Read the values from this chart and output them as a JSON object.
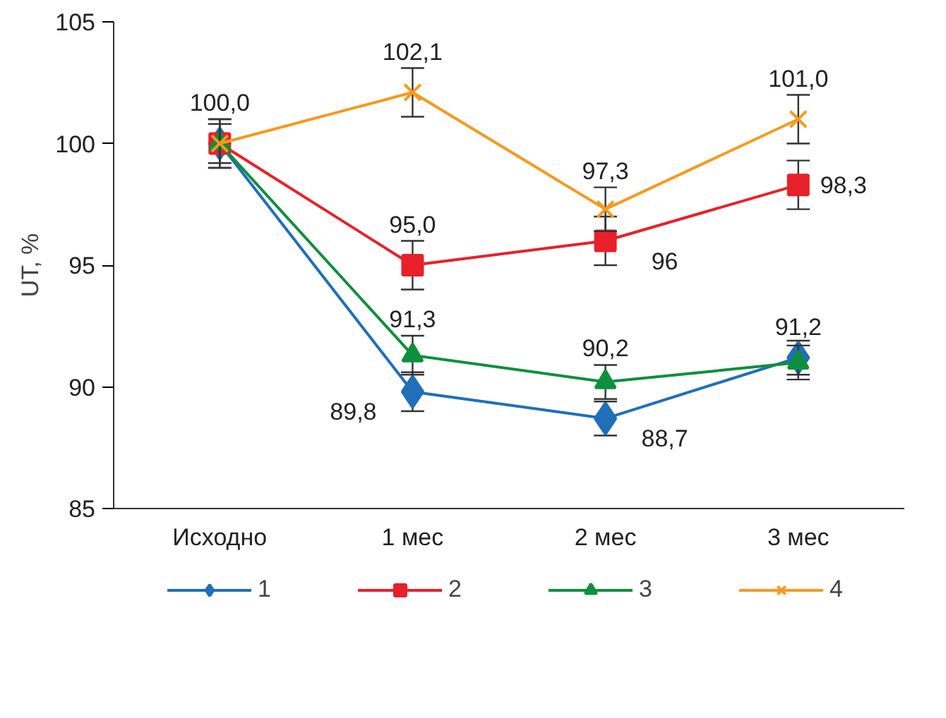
{
  "chart_data": {
    "type": "line",
    "ylabel": "UT, %",
    "categories": [
      "Исходно",
      "1 мес",
      "2 мес",
      "3 мес"
    ],
    "ylim": [
      85,
      105
    ],
    "yticks": [
      85,
      90,
      95,
      100,
      105
    ],
    "grid": false,
    "legend": "bottom",
    "series": [
      {
        "name": "1",
        "color": "#1f6fb9",
        "marker": "diamond",
        "values": [
          100.0,
          89.8,
          88.7,
          91.2
        ],
        "errors": [
          0.8,
          0.8,
          0.7,
          0.7
        ],
        "value_labels": [
          null,
          "89,8",
          "88,7",
          "91,2"
        ]
      },
      {
        "name": "2",
        "color": "#e8202a",
        "marker": "square",
        "values": [
          100.0,
          95.0,
          96.0,
          98.3
        ],
        "errors": [
          1.0,
          1.0,
          1.0,
          1.0
        ],
        "value_labels": [
          null,
          "95,0",
          "96",
          "98,3"
        ]
      },
      {
        "name": "3",
        "color": "#0e8f3e",
        "marker": "triangle",
        "values": [
          100.0,
          91.3,
          90.2,
          91.0
        ],
        "errors": [
          0.8,
          0.8,
          0.7,
          0.7
        ],
        "value_labels": [
          null,
          "91,3",
          "90,2",
          null
        ]
      },
      {
        "name": "4",
        "color": "#f59a1e",
        "marker": "cross",
        "values": [
          100.0,
          102.1,
          97.3,
          101.0
        ],
        "errors": [
          1.0,
          1.0,
          0.9,
          1.0
        ],
        "value_labels": [
          "100,0",
          "102,1",
          "97,3",
          "101,0"
        ]
      }
    ]
  }
}
